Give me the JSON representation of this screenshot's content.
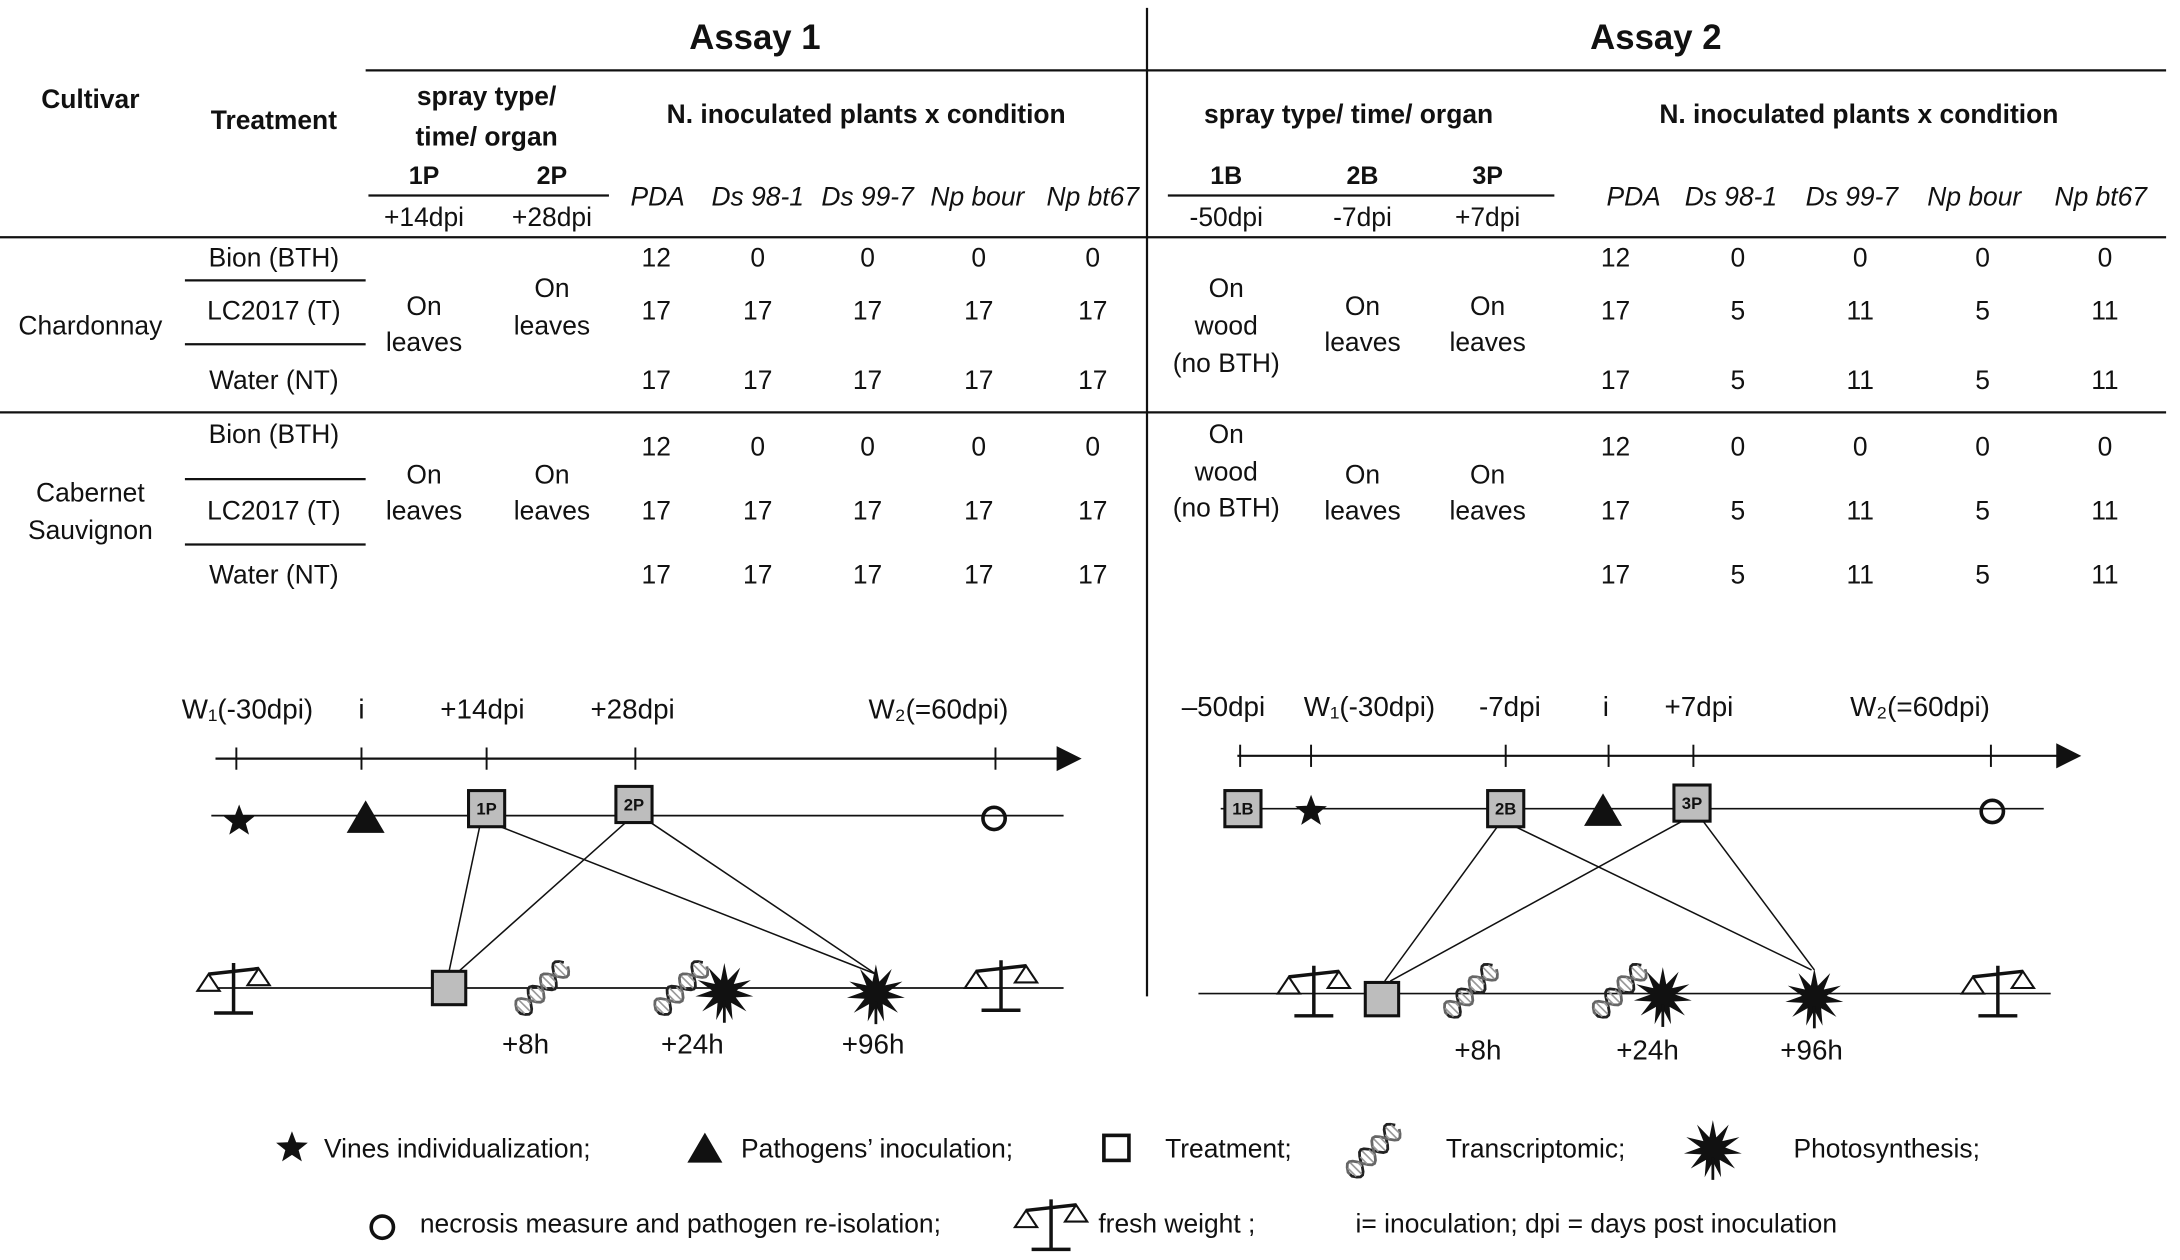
{
  "table": {
    "headers": {
      "cultivar": "Cultivar",
      "treatment": "Treatment"
    },
    "assays": [
      {
        "title": "Assay 1",
        "spray_header": [
          "spray type/",
          "time/ organ"
        ],
        "count_header": "N. inoculated plants x condition",
        "sprays": [
          {
            "code": "1P",
            "time": "+14dpi"
          },
          {
            "code": "2P",
            "time": "+28dpi"
          }
        ],
        "conditions": [
          "PDA",
          "Ds 98-1",
          "Ds 99-7",
          "Np bour",
          "Np bt67"
        ]
      },
      {
        "title": "Assay 2",
        "spray_header": [
          "spray type/ time/ organ"
        ],
        "count_header": "N. inoculated plants x condition",
        "sprays": [
          {
            "code": "1B",
            "time": "-50dpi"
          },
          {
            "code": "2B",
            "time": "-7dpi"
          },
          {
            "code": "3P",
            "time": "+7dpi"
          }
        ],
        "conditions": [
          "PDA",
          "Ds 98-1",
          "Ds 99-7",
          "Np bour",
          "Np bt67"
        ]
      }
    ],
    "cultivars": [
      {
        "name": [
          "Chardonnay"
        ],
        "treatments": [
          "Bion  (BTH)",
          "LC2017 (T)",
          "Water (NT)"
        ],
        "sprays": [
          [
            [
              "On",
              "leaves"
            ],
            [
              "On",
              "leaves"
            ]
          ],
          [
            [
              "On",
              "wood",
              "(no BTH)"
            ],
            [
              "On",
              "leaves"
            ],
            [
              "On",
              "leaves"
            ]
          ]
        ],
        "counts": [
          [
            [
              12,
              0,
              0,
              0,
              0
            ],
            [
              17,
              17,
              17,
              17,
              17
            ],
            [
              17,
              17,
              17,
              17,
              17
            ]
          ],
          [
            [
              12,
              0,
              0,
              0,
              0
            ],
            [
              17,
              5,
              11,
              5,
              11
            ],
            [
              17,
              5,
              11,
              5,
              11
            ]
          ]
        ]
      },
      {
        "name": [
          "Cabernet",
          "Sauvignon"
        ],
        "treatments": [
          "Bion (BTH)",
          "LC2017 (T)",
          "Water (NT)"
        ],
        "sprays": [
          [
            [
              "On",
              "leaves"
            ],
            [
              "On",
              "leaves"
            ]
          ],
          [
            [
              "On",
              "wood",
              "(no BTH)"
            ],
            [
              "On",
              "leaves"
            ],
            [
              "On",
              "leaves"
            ]
          ]
        ],
        "counts": [
          [
            [
              12,
              0,
              0,
              0,
              0
            ],
            [
              17,
              17,
              17,
              17,
              17
            ],
            [
              17,
              17,
              17,
              17,
              17
            ]
          ],
          [
            [
              12,
              0,
              0,
              0,
              0
            ],
            [
              17,
              5,
              11,
              5,
              11
            ],
            [
              17,
              5,
              11,
              5,
              11
            ]
          ]
        ]
      }
    ]
  },
  "timelines": [
    {
      "labels": [
        "W₁(-30dpi)",
        "i",
        "+14dpi",
        "+28dpi",
        "W₂(=60dpi)"
      ],
      "times": [
        "+8h",
        "+24h",
        "+96h"
      ]
    },
    {
      "labels": [
        "–50dpi",
        "W₁(-30dpi)",
        "-7dpi",
        "i",
        "+7dpi",
        "W₂(=60dpi)"
      ],
      "times": [
        "+8h",
        "+24h",
        "+96h"
      ]
    }
  ],
  "legend": [
    "Vines individualization;",
    "Pathogens’ inoculation;",
    "Treatment;",
    "Transcriptomic;",
    "Photosynthesis;",
    "necrosis measure and pathogen re-isolation;",
    "fresh weight ;",
    "i= inoculation;   dpi = days post inoculation"
  ]
}
